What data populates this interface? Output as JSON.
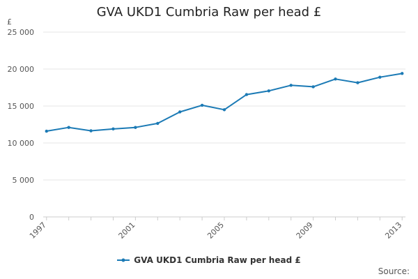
{
  "chart_data": {
    "type": "line",
    "title": "GVA UKD1 Cumbria Raw per head £",
    "ylabel": "£",
    "xlabel": "",
    "x": [
      1997,
      1998,
      1999,
      2000,
      2001,
      2002,
      2003,
      2004,
      2005,
      2006,
      2007,
      2008,
      2009,
      2010,
      2011,
      2012,
      2013
    ],
    "x_tick_labels": [
      "1997",
      "2001",
      "2005",
      "2009",
      "2013"
    ],
    "y_tick_labels": [
      "0",
      "5 000",
      "10 000",
      "15 000",
      "20 000",
      "25 000"
    ],
    "ylim": [
      0,
      25000
    ],
    "grid": "horizontal",
    "legend_position": "bottom-center",
    "series": [
      {
        "name": "GVA UKD1 Cumbria Raw per head £",
        "color": "#1b7ab5",
        "values": [
          11600,
          12100,
          11650,
          11900,
          12100,
          12650,
          14200,
          15100,
          14500,
          16550,
          17050,
          17800,
          17600,
          18650,
          18150,
          18900,
          19400
        ]
      }
    ]
  },
  "source_label": "Source:"
}
